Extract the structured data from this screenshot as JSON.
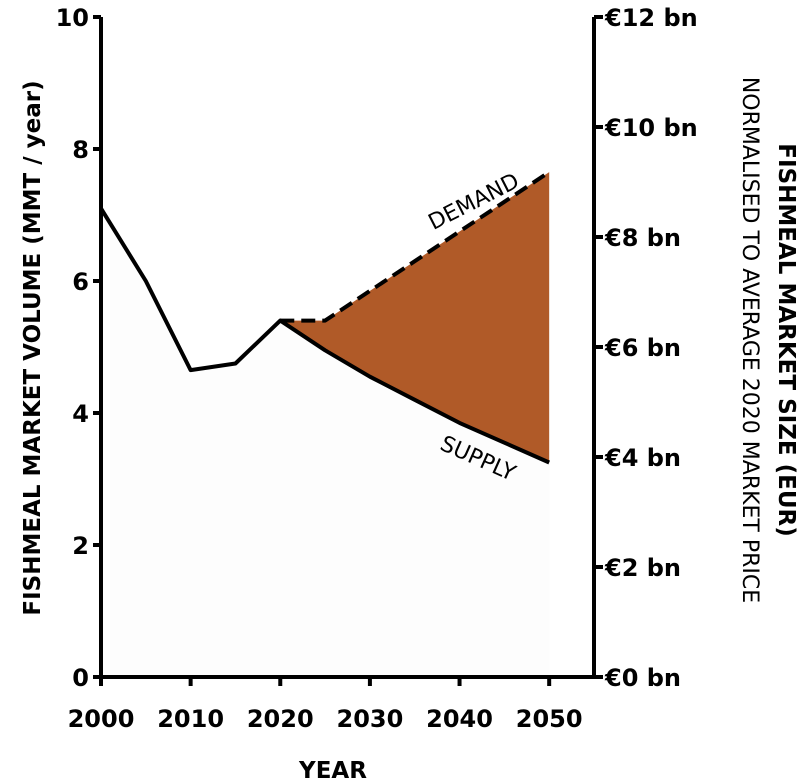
{
  "chart_data": {
    "type": "line",
    "xlabel": "YEAR",
    "ylabel": "FISHMEAL MARKET VOLUME (MMT / year)",
    "y2label": "FISHMEAL MARKET SIZE (EUR)",
    "y2sublabel": "NORMALISED TO AVERAGE 2020 MARKET PRICE",
    "xlim": [
      2000,
      2055
    ],
    "ylim": [
      0,
      10
    ],
    "y2lim": [
      0,
      12
    ],
    "x_ticks": [
      2000,
      2010,
      2020,
      2030,
      2040,
      2050
    ],
    "x_tick_labels": [
      "2000",
      "2010",
      "2020",
      "2030",
      "2040",
      "2050"
    ],
    "y_ticks": [
      0,
      2,
      4,
      6,
      8,
      10
    ],
    "y_tick_labels": [
      "0",
      "2",
      "4",
      "6",
      "8",
      "10"
    ],
    "y2_ticks": [
      0,
      2,
      4,
      6,
      8,
      10,
      12
    ],
    "y2_tick_labels": [
      "€0 bn",
      "€2 bn",
      "€4 bn",
      "€6 bn",
      "€8 bn",
      "€10 bn",
      "€12 bn"
    ],
    "series": [
      {
        "name": "SUPPLY",
        "style": "solid",
        "x": [
          2000,
          2005,
          2010,
          2015,
          2020,
          2025,
          2030,
          2035,
          2040,
          2045,
          2050
        ],
        "y": [
          7.1,
          6.0,
          4.65,
          4.75,
          5.4,
          4.95,
          4.55,
          4.2,
          3.85,
          3.55,
          3.25
        ]
      },
      {
        "name": "DEMAND",
        "style": "dashed",
        "x": [
          2020,
          2025,
          2030,
          2035,
          2040,
          2045,
          2050
        ],
        "y": [
          5.4,
          5.4,
          5.85,
          6.3,
          6.75,
          7.2,
          7.65
        ]
      }
    ],
    "gap_fill": {
      "from": 2020,
      "to": 2050,
      "between": [
        "SUPPLY",
        "DEMAND"
      ]
    },
    "colors": {
      "line": "#000000",
      "gap_fill": "#b05a28",
      "area_fill": "#fdfdfd"
    },
    "annotations": [
      "DEMAND",
      "SUPPLY"
    ]
  }
}
